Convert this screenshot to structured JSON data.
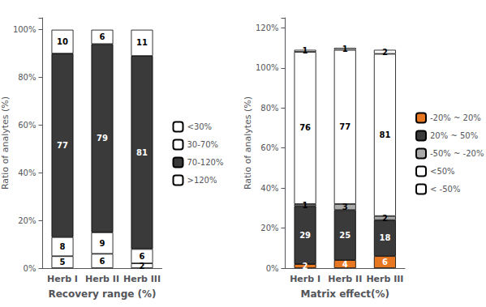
{
  "chart_data": [
    {
      "type": "bar",
      "xlabel": "Recovery range (%)",
      "ylabel": "Ratio of analytes (%)",
      "categories": [
        "Herb I",
        "Herb II",
        "Herb III"
      ],
      "series": [
        {
          "name": "<30%",
          "color": "#ffffff",
          "values": [
            5,
            6,
            2
          ]
        },
        {
          "name": "30-70%",
          "color": "#ffffff",
          "values": [
            8,
            9,
            6
          ]
        },
        {
          "name": "70-120%",
          "color": "#3a3a3a",
          "values": [
            77,
            79,
            81
          ]
        },
        {
          "name": ">120%",
          "color": "#ffffff",
          "values": [
            10,
            6,
            11
          ]
        }
      ],
      "stacked": true,
      "data_labels": true,
      "ylim": [
        0,
        105
      ],
      "yticks": [
        {
          "value": 0,
          "label": "0%"
        },
        {
          "value": 20,
          "label": "20%"
        },
        {
          "value": 40,
          "label": "40%"
        },
        {
          "value": 60,
          "label": "60%"
        },
        {
          "value": 80,
          "label": "80%"
        },
        {
          "value": 100,
          "label": "100%"
        }
      ],
      "grid": false,
      "legend": "right"
    },
    {
      "type": "bar",
      "xlabel": "Matrix effect(%)",
      "ylabel": "Ratio of analytes (%)",
      "categories": [
        "Herb I",
        "Herb II",
        "Herb III"
      ],
      "series": [
        {
          "name": "-20% ~ 20%",
          "color": "#E87722",
          "values": [
            2,
            4,
            6
          ]
        },
        {
          "name": "20% ~ 50%",
          "color": "#3a3a3a",
          "values": [
            29,
            25,
            18
          ]
        },
        {
          "name": "-50% ~ -20%",
          "color": "#aaaaaa",
          "values": [
            1,
            3,
            2
          ]
        },
        {
          "name": "<50%",
          "color": "#ffffff",
          "values": [
            76,
            77,
            81
          ]
        },
        {
          "name": "< -50%",
          "color": "#ffffff",
          "values": [
            1,
            1,
            2
          ]
        }
      ],
      "stacked": true,
      "data_labels": true,
      "ylim": [
        0,
        125
      ],
      "yticks": [
        {
          "value": 0,
          "label": "0%"
        },
        {
          "value": 20,
          "label": "20%"
        },
        {
          "value": 40,
          "label": "40%"
        },
        {
          "value": 60,
          "label": "60%"
        },
        {
          "value": 80,
          "label": "80%"
        },
        {
          "value": 100,
          "label": "100%"
        },
        {
          "value": 120,
          "label": "120%"
        }
      ],
      "grid": false,
      "legend": "right"
    }
  ]
}
